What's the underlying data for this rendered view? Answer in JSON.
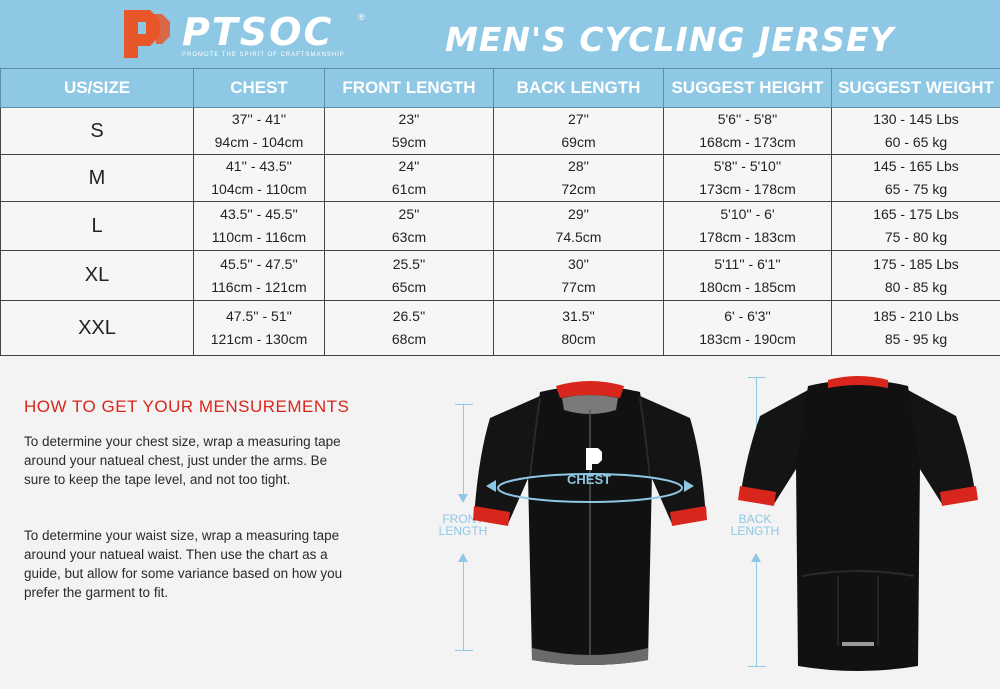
{
  "brand": {
    "name": "PTSOC",
    "registered": "®",
    "tagline": "PROMOTE THE SPIRIT OF CRAFTSMANSHIP"
  },
  "title": "MEN'S CYCLING JERSEY",
  "table": {
    "headers": [
      "US/SIZE",
      "CHEST",
      "FRONT LENGTH",
      "BACK LENGTH",
      "SUGGEST HEIGHT",
      "SUGGEST WEIGHT"
    ],
    "rows": [
      {
        "size": "S",
        "chest": [
          "37'' - 41''",
          "94cm - 104cm"
        ],
        "front": [
          "23''",
          "59cm"
        ],
        "back": [
          "27''",
          "69cm"
        ],
        "height": [
          "5'6'' - 5'8''",
          "168cm - 173cm"
        ],
        "weight": [
          "130 - 145 Lbs",
          "60 - 65 kg"
        ]
      },
      {
        "size": "M",
        "chest": [
          "41'' - 43.5''",
          "104cm - 110cm"
        ],
        "front": [
          "24''",
          "61cm"
        ],
        "back": [
          "28''",
          "72cm"
        ],
        "height": [
          "5'8'' - 5'10''",
          "173cm - 178cm"
        ],
        "weight": [
          "145 - 165 Lbs",
          "65 - 75 kg"
        ]
      },
      {
        "size": "L",
        "chest": [
          "43.5'' - 45.5''",
          "110cm - 116cm"
        ],
        "front": [
          "25''",
          "63cm"
        ],
        "back": [
          "29''",
          "74.5cm"
        ],
        "height": [
          "5'10'' - 6'",
          "178cm - 183cm"
        ],
        "weight": [
          "165 - 175 Lbs",
          "75 - 80 kg"
        ]
      },
      {
        "size": "XL",
        "chest": [
          "45.5'' - 47.5''",
          "116cm - 121cm"
        ],
        "front": [
          "25.5''",
          "65cm"
        ],
        "back": [
          "30''",
          "77cm"
        ],
        "height": [
          "5'11'' - 6'1''",
          "180cm - 185cm"
        ],
        "weight": [
          "175 - 185 Lbs",
          "80 - 85 kg"
        ]
      },
      {
        "size": "XXL",
        "chest": [
          "47.5'' - 51''",
          "121cm - 130cm"
        ],
        "front": [
          "26.5''",
          "68cm"
        ],
        "back": [
          "31.5''",
          "80cm"
        ],
        "height": [
          "6' - 6'3''",
          "183cm - 190cm"
        ],
        "weight": [
          "185 - 210 Lbs",
          "85 - 95 kg"
        ]
      }
    ]
  },
  "measure": {
    "title": "HOW TO GET YOUR MENSUREMENTS",
    "p1": "To determine your chest size, wrap a measuring tape around your natueal chest, just under the arms. Be sure to keep the tape level, and not too tight.",
    "p2": "To determine your waist size, wrap a measuring tape around your natueal waist. Then use the chart as a guide, but allow for some variance based on how you prefer the garment to fit."
  },
  "diagram": {
    "chest_label": "CHEST",
    "front_label": [
      "FRONT",
      "LENGTH"
    ],
    "back_label": [
      "BACK",
      "LENGTH"
    ]
  },
  "colors": {
    "accent_blue": "#8ec8e4",
    "brand_orange": "#e8562a",
    "trim_red": "#d9261c",
    "jersey_black": "#111111"
  }
}
